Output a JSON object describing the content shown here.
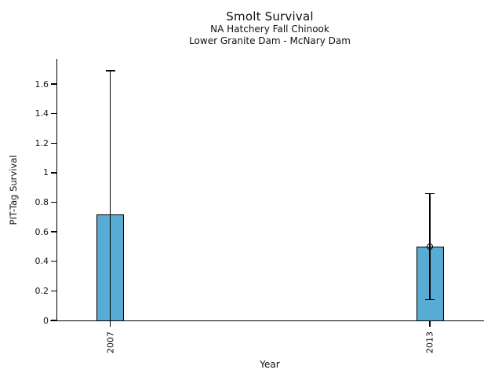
{
  "chart_data": {
    "type": "bar",
    "title": "Smolt Survival",
    "subtitle1": "NA Hatchery Fall Chinook",
    "subtitle2": "Lower Granite Dam - McNary Dam",
    "xlabel": "Year",
    "ylabel": "PIT-Tag Survival",
    "categories": [
      "2007",
      "2013"
    ],
    "values": [
      0.72,
      0.5
    ],
    "error_high": [
      1.69,
      0.86
    ],
    "error_low": [
      0.0,
      0.14
    ],
    "error_low_cap_visible": [
      false,
      true
    ],
    "point_marker_visible": [
      false,
      true
    ],
    "ylim": [
      0,
      1.7
    ],
    "yticks": [
      0,
      0.2,
      0.4,
      0.6,
      0.8,
      1,
      1.2,
      1.4,
      1.6
    ],
    "ytick_labels": [
      "0",
      "0.2",
      "0.4",
      "0.6",
      "0.8",
      "1",
      "1.2",
      "1.4",
      "1.6"
    ],
    "grid": false,
    "legend": "none",
    "bar_fill": "#58abd3",
    "bar_edge": "#000000",
    "text_color": "#111111"
  }
}
